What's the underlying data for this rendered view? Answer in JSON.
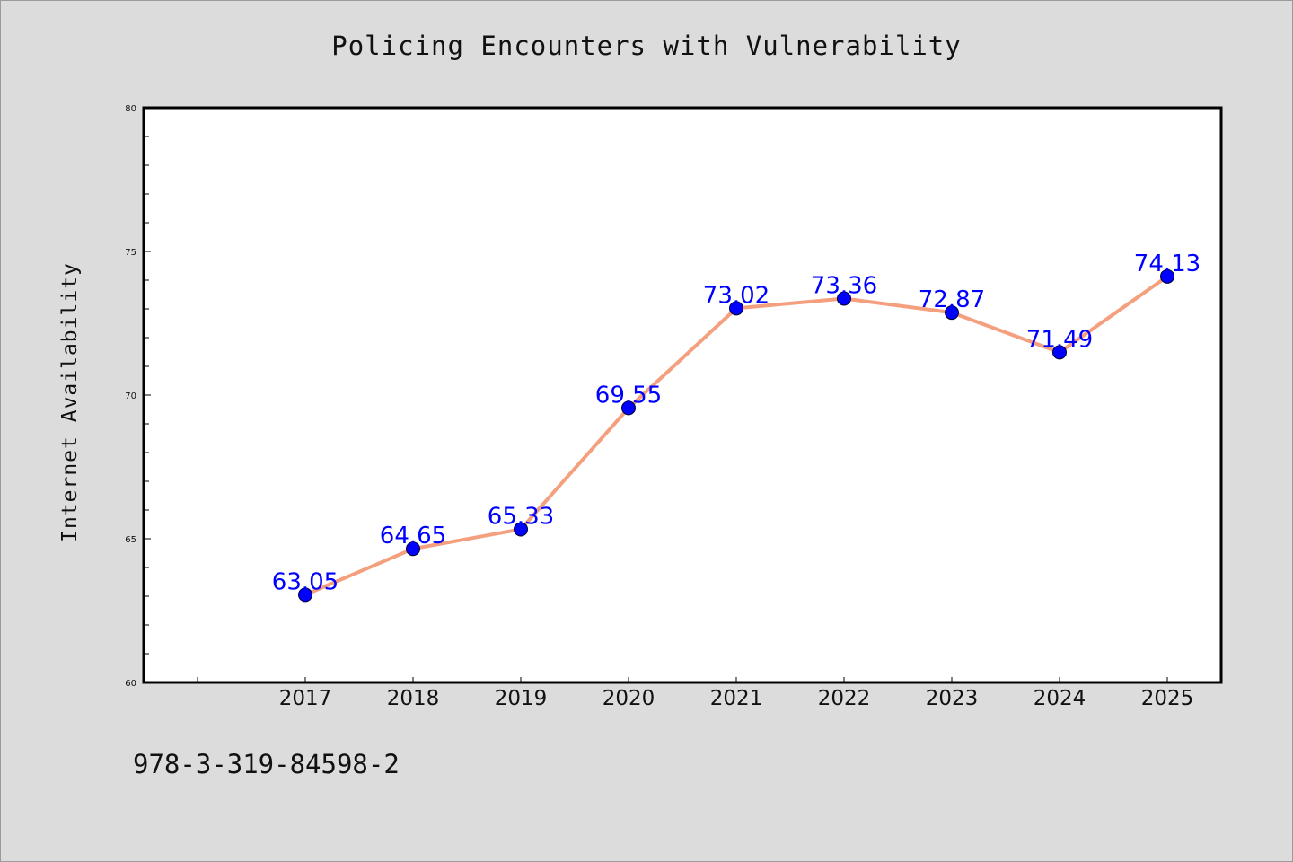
{
  "chart_data": {
    "type": "line",
    "title": "Policing Encounters with Vulnerability",
    "xlabel": "",
    "ylabel": "Internet Availability",
    "categories": [
      "2017",
      "2018",
      "2019",
      "2020",
      "2021",
      "2022",
      "2023",
      "2024",
      "2025"
    ],
    "series": [
      {
        "values": [
          63.05,
          64.65,
          65.33,
          69.55,
          73.02,
          73.36,
          72.87,
          71.49,
          74.13
        ],
        "line_color": "#f4a07e",
        "marker_color": "#0000ff"
      }
    ],
    "data_labels": [
      "63.05",
      "64.65",
      "65.33",
      "69.55",
      "73.02",
      "73.36",
      "72.87",
      "71.49",
      "74.13"
    ],
    "ylim": [
      60,
      80
    ],
    "yticks": [
      "60",
      "65",
      "70",
      "75",
      "80"
    ],
    "grid": false,
    "legend": "none"
  },
  "footer": {
    "isbn": "978-3-319-84598-2"
  },
  "colors": {
    "background": "#dcdcdc",
    "plot_background": "#ffffff",
    "label_color": "#0000ff"
  }
}
